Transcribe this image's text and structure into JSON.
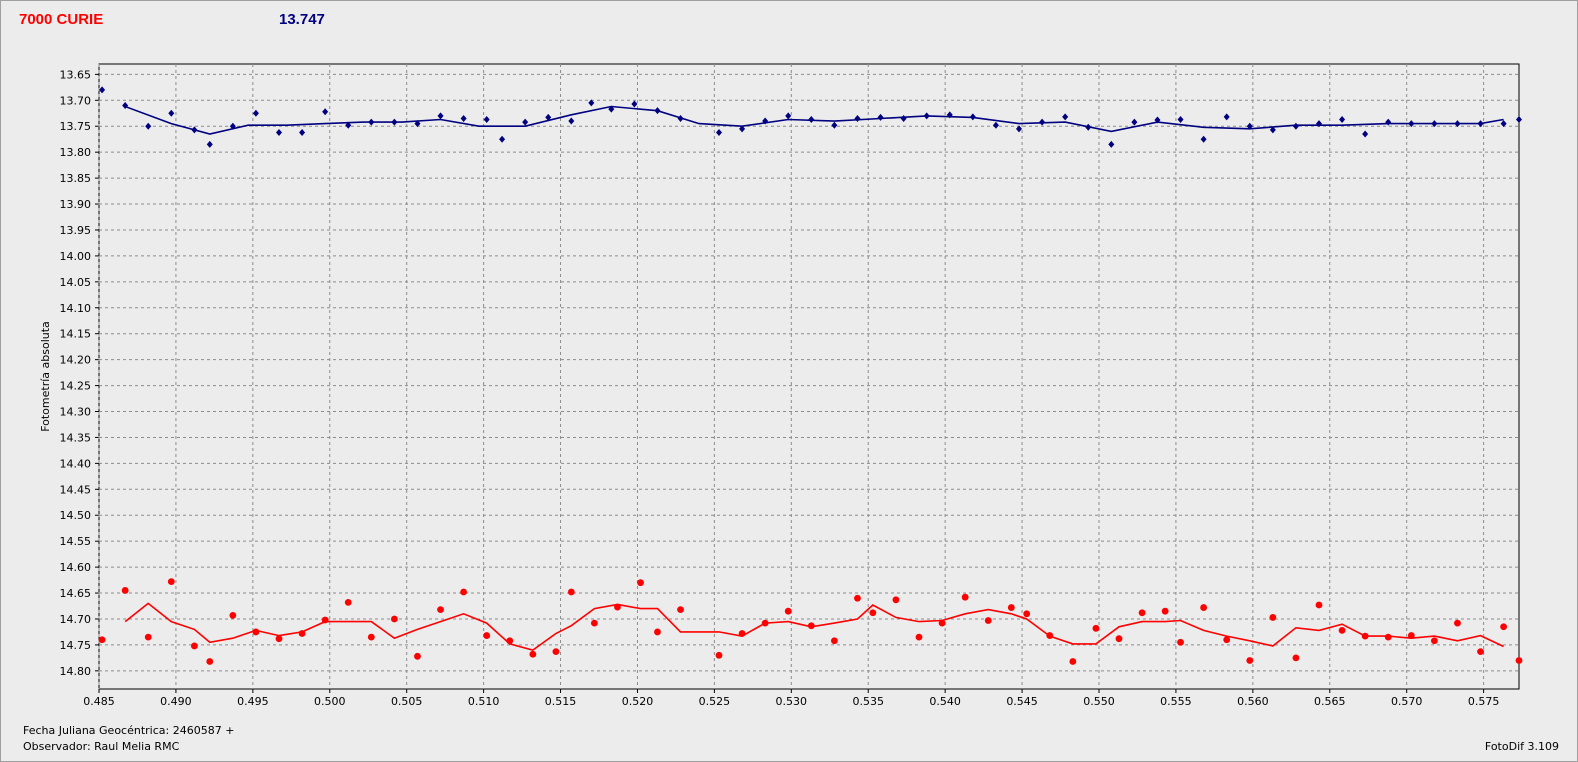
{
  "header": {
    "object_name": "7000 CURIE",
    "magnitude": "13.747"
  },
  "footer": {
    "julian_date": "Fecha Juliana Geocéntrica: 2460587 +",
    "observer": "Observador: Raul Melia RMC",
    "software": "FotoDif 3.109"
  },
  "colors": {
    "series_blue": "#000080",
    "series_red": "#ff0000",
    "grid": "#8c8c8c",
    "plot_bg": "#ececec"
  },
  "chart_data": {
    "type": "scatter",
    "xlabel": "",
    "ylabel": "Fotometría absoluta",
    "xlim": [
      0.485,
      0.5773
    ],
    "ylim": [
      13.63,
      14.835
    ],
    "y_inverted": true,
    "grid": true,
    "x_ticks": [
      "0.485",
      "0.490",
      "0.495",
      "0.500",
      "0.505",
      "0.510",
      "0.515",
      "0.520",
      "0.525",
      "0.530",
      "0.535",
      "0.540",
      "0.545",
      "0.550",
      "0.555",
      "0.560",
      "0.565",
      "0.570",
      "0.575"
    ],
    "y_ticks": [
      "13.65",
      "13.70",
      "13.75",
      "13.80",
      "13.85",
      "13.90",
      "13.95",
      "14.00",
      "14.05",
      "14.10",
      "14.15",
      "14.20",
      "14.25",
      "14.30",
      "14.35",
      "14.40",
      "14.45",
      "14.50",
      "14.55",
      "14.60",
      "14.65",
      "14.70",
      "14.75",
      "14.80"
    ],
    "series": [
      {
        "marker": "diamond",
        "color": "#000080",
        "points": [
          [
            0.4852,
            13.68
          ],
          [
            0.4867,
            13.71
          ],
          [
            0.4882,
            13.75
          ],
          [
            0.4897,
            13.725
          ],
          [
            0.4912,
            13.757
          ],
          [
            0.4922,
            13.785
          ],
          [
            0.4937,
            13.75
          ],
          [
            0.4952,
            13.725
          ],
          [
            0.4967,
            13.762
          ],
          [
            0.4982,
            13.762
          ],
          [
            0.4997,
            13.722
          ],
          [
            0.5012,
            13.748
          ],
          [
            0.5027,
            13.742
          ],
          [
            0.5042,
            13.742
          ],
          [
            0.5057,
            13.745
          ],
          [
            0.5072,
            13.73
          ],
          [
            0.5087,
            13.735
          ],
          [
            0.5102,
            13.737
          ],
          [
            0.5112,
            13.775
          ],
          [
            0.5127,
            13.742
          ],
          [
            0.5142,
            13.733
          ],
          [
            0.5157,
            13.74
          ],
          [
            0.517,
            13.705
          ],
          [
            0.5183,
            13.717
          ],
          [
            0.5198,
            13.707
          ],
          [
            0.5213,
            13.72
          ],
          [
            0.5228,
            13.735
          ],
          [
            0.5253,
            13.762
          ],
          [
            0.5268,
            13.755
          ],
          [
            0.5283,
            13.74
          ],
          [
            0.5298,
            13.73
          ],
          [
            0.5313,
            13.737
          ],
          [
            0.5328,
            13.748
          ],
          [
            0.5343,
            13.735
          ],
          [
            0.5358,
            13.733
          ],
          [
            0.5373,
            13.735
          ],
          [
            0.5388,
            13.73
          ],
          [
            0.5403,
            13.728
          ],
          [
            0.5418,
            13.732
          ],
          [
            0.5433,
            13.748
          ],
          [
            0.5448,
            13.755
          ],
          [
            0.5463,
            13.742
          ],
          [
            0.5478,
            13.732
          ],
          [
            0.5493,
            13.752
          ],
          [
            0.5508,
            13.785
          ],
          [
            0.5523,
            13.742
          ],
          [
            0.5538,
            13.738
          ],
          [
            0.5553,
            13.737
          ],
          [
            0.5568,
            13.775
          ],
          [
            0.5583,
            13.732
          ],
          [
            0.5598,
            13.75
          ],
          [
            0.5613,
            13.757
          ],
          [
            0.5628,
            13.75
          ],
          [
            0.5643,
            13.745
          ],
          [
            0.5658,
            13.737
          ],
          [
            0.5673,
            13.765
          ],
          [
            0.5688,
            13.742
          ],
          [
            0.5703,
            13.745
          ],
          [
            0.5718,
            13.745
          ],
          [
            0.5733,
            13.745
          ],
          [
            0.5748,
            13.745
          ],
          [
            0.5763,
            13.745
          ],
          [
            0.5773,
            13.737
          ],
          [
            0.5788,
            13.722
          ]
        ],
        "curve": [
          [
            0.4867,
            13.712
          ],
          [
            0.4897,
            13.745
          ],
          [
            0.4922,
            13.765
          ],
          [
            0.4947,
            13.748
          ],
          [
            0.4972,
            13.748
          ],
          [
            0.4997,
            13.745
          ],
          [
            0.5022,
            13.742
          ],
          [
            0.5047,
            13.742
          ],
          [
            0.5072,
            13.737
          ],
          [
            0.5097,
            13.75
          ],
          [
            0.5127,
            13.75
          ],
          [
            0.5157,
            13.728
          ],
          [
            0.5183,
            13.712
          ],
          [
            0.5213,
            13.72
          ],
          [
            0.524,
            13.745
          ],
          [
            0.5268,
            13.75
          ],
          [
            0.5298,
            13.737
          ],
          [
            0.5328,
            13.74
          ],
          [
            0.5358,
            13.735
          ],
          [
            0.5388,
            13.73
          ],
          [
            0.5418,
            13.733
          ],
          [
            0.5448,
            13.745
          ],
          [
            0.5478,
            13.742
          ],
          [
            0.5508,
            13.76
          ],
          [
            0.5538,
            13.742
          ],
          [
            0.5568,
            13.752
          ],
          [
            0.5598,
            13.755
          ],
          [
            0.5628,
            13.748
          ],
          [
            0.5658,
            13.748
          ],
          [
            0.5688,
            13.745
          ],
          [
            0.5718,
            13.745
          ],
          [
            0.5748,
            13.745
          ],
          [
            0.5763,
            13.737
          ]
        ]
      },
      {
        "marker": "circle",
        "color": "#ff0000",
        "points": [
          [
            0.4852,
            14.74
          ],
          [
            0.4867,
            14.645
          ],
          [
            0.4882,
            14.735
          ],
          [
            0.4897,
            14.628
          ],
          [
            0.4912,
            14.752
          ],
          [
            0.4922,
            14.782
          ],
          [
            0.4937,
            14.693
          ],
          [
            0.4952,
            14.725
          ],
          [
            0.4967,
            14.738
          ],
          [
            0.4982,
            14.728
          ],
          [
            0.4997,
            14.702
          ],
          [
            0.5012,
            14.668
          ],
          [
            0.5027,
            14.735
          ],
          [
            0.5042,
            14.7
          ],
          [
            0.5057,
            14.772
          ],
          [
            0.5072,
            14.682
          ],
          [
            0.5087,
            14.648
          ],
          [
            0.5102,
            14.732
          ],
          [
            0.5117,
            14.742
          ],
          [
            0.5132,
            14.768
          ],
          [
            0.5147,
            14.763
          ],
          [
            0.5157,
            14.648
          ],
          [
            0.5172,
            14.708
          ],
          [
            0.5187,
            14.677
          ],
          [
            0.5202,
            14.63
          ],
          [
            0.5213,
            14.725
          ],
          [
            0.5228,
            14.682
          ],
          [
            0.5253,
            14.77
          ],
          [
            0.5268,
            14.728
          ],
          [
            0.5283,
            14.708
          ],
          [
            0.5298,
            14.685
          ],
          [
            0.5313,
            14.713
          ],
          [
            0.5328,
            14.742
          ],
          [
            0.5343,
            14.66
          ],
          [
            0.5353,
            14.688
          ],
          [
            0.5368,
            14.663
          ],
          [
            0.5383,
            14.735
          ],
          [
            0.5398,
            14.708
          ],
          [
            0.5413,
            14.658
          ],
          [
            0.5428,
            14.703
          ],
          [
            0.5443,
            14.678
          ],
          [
            0.5453,
            14.69
          ],
          [
            0.5468,
            14.732
          ],
          [
            0.5483,
            14.782
          ],
          [
            0.5498,
            14.718
          ],
          [
            0.5513,
            14.738
          ],
          [
            0.5528,
            14.688
          ],
          [
            0.5543,
            14.685
          ],
          [
            0.5553,
            14.745
          ],
          [
            0.5568,
            14.678
          ],
          [
            0.5583,
            14.74
          ],
          [
            0.5598,
            14.78
          ],
          [
            0.5613,
            14.697
          ],
          [
            0.5628,
            14.775
          ],
          [
            0.5643,
            14.673
          ],
          [
            0.5658,
            14.722
          ],
          [
            0.5673,
            14.733
          ],
          [
            0.5688,
            14.735
          ],
          [
            0.5703,
            14.732
          ],
          [
            0.5718,
            14.742
          ],
          [
            0.5733,
            14.708
          ],
          [
            0.5748,
            14.763
          ],
          [
            0.5763,
            14.715
          ],
          [
            0.5773,
            14.78
          ]
        ],
        "curve": [
          [
            0.4867,
            14.705
          ],
          [
            0.4882,
            14.67
          ],
          [
            0.4897,
            14.705
          ],
          [
            0.4912,
            14.72
          ],
          [
            0.4922,
            14.745
          ],
          [
            0.4937,
            14.737
          ],
          [
            0.4952,
            14.722
          ],
          [
            0.4967,
            14.732
          ],
          [
            0.4982,
            14.725
          ],
          [
            0.4997,
            14.705
          ],
          [
            0.5012,
            14.705
          ],
          [
            0.5027,
            14.705
          ],
          [
            0.5042,
            14.737
          ],
          [
            0.5057,
            14.72
          ],
          [
            0.5072,
            14.705
          ],
          [
            0.5087,
            14.69
          ],
          [
            0.5102,
            14.708
          ],
          [
            0.5117,
            14.748
          ],
          [
            0.5132,
            14.76
          ],
          [
            0.5147,
            14.728
          ],
          [
            0.5157,
            14.713
          ],
          [
            0.5172,
            14.68
          ],
          [
            0.5187,
            14.672
          ],
          [
            0.5202,
            14.68
          ],
          [
            0.5213,
            14.68
          ],
          [
            0.5228,
            14.725
          ],
          [
            0.5253,
            14.725
          ],
          [
            0.5268,
            14.733
          ],
          [
            0.5283,
            14.708
          ],
          [
            0.5298,
            14.705
          ],
          [
            0.5313,
            14.715
          ],
          [
            0.5328,
            14.708
          ],
          [
            0.5343,
            14.7
          ],
          [
            0.5353,
            14.673
          ],
          [
            0.5368,
            14.697
          ],
          [
            0.5383,
            14.705
          ],
          [
            0.5398,
            14.703
          ],
          [
            0.5413,
            14.69
          ],
          [
            0.5428,
            14.682
          ],
          [
            0.5443,
            14.69
          ],
          [
            0.5453,
            14.7
          ],
          [
            0.5468,
            14.733
          ],
          [
            0.5483,
            14.748
          ],
          [
            0.5498,
            14.748
          ],
          [
            0.5513,
            14.715
          ],
          [
            0.5528,
            14.705
          ],
          [
            0.5543,
            14.705
          ],
          [
            0.5553,
            14.703
          ],
          [
            0.5568,
            14.722
          ],
          [
            0.5583,
            14.733
          ],
          [
            0.5598,
            14.742
          ],
          [
            0.5613,
            14.752
          ],
          [
            0.5628,
            14.717
          ],
          [
            0.5643,
            14.722
          ],
          [
            0.5658,
            14.71
          ],
          [
            0.5673,
            14.733
          ],
          [
            0.5688,
            14.733
          ],
          [
            0.5703,
            14.737
          ],
          [
            0.5718,
            14.733
          ],
          [
            0.5733,
            14.742
          ],
          [
            0.5748,
            14.732
          ],
          [
            0.5763,
            14.753
          ]
        ]
      }
    ]
  }
}
